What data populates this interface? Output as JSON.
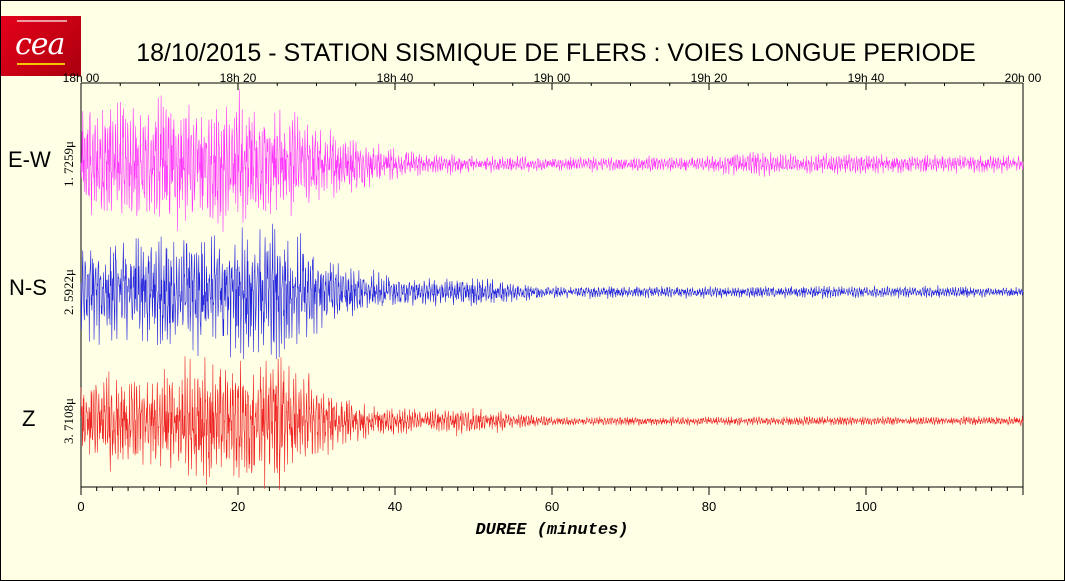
{
  "title": "18/10/2015  -  STATION SISMIQUE DE FLERS : VOIES LONGUE PERIODE",
  "chart_data": {
    "type": "line",
    "title": "18/10/2015  -  STATION SISMIQUE DE FLERS : VOIES LONGUE PERIODE",
    "xlabel": "DUREE (minutes)",
    "xlim": [
      0,
      120
    ],
    "x_ticks": [
      0,
      20,
      40,
      60,
      80,
      100
    ],
    "x_minor_step": 2,
    "top_time_ticks": [
      "18h 00",
      "18h 20",
      "18h 40",
      "19h 00",
      "19h 20",
      "19h 40",
      "20h 00"
    ],
    "grid": false,
    "legend": "none",
    "series": [
      {
        "name": "E-W",
        "scale_label": "1. 7259μ",
        "color": "#ff33ff",
        "envelope": {
          "minutes": [
            0,
            5,
            10,
            15,
            20,
            25,
            30,
            33,
            38,
            42,
            50,
            60,
            70,
            80,
            85,
            90,
            100,
            110,
            120
          ],
          "amplitude": [
            0.4,
            0.42,
            0.42,
            0.4,
            0.44,
            0.36,
            0.26,
            0.2,
            0.14,
            0.08,
            0.06,
            0.05,
            0.05,
            0.05,
            0.09,
            0.07,
            0.06,
            0.06,
            0.06
          ]
        }
      },
      {
        "name": "N-S",
        "scale_label": "2. 5922μ",
        "color": "#2222dd",
        "envelope": {
          "minutes": [
            0,
            5,
            10,
            15,
            20,
            25,
            30,
            33,
            38,
            42,
            50,
            60,
            70,
            80,
            90,
            100,
            110,
            120
          ],
          "amplitude": [
            0.32,
            0.34,
            0.36,
            0.42,
            0.42,
            0.44,
            0.3,
            0.18,
            0.12,
            0.09,
            0.09,
            0.04,
            0.04,
            0.04,
            0.04,
            0.04,
            0.04,
            0.03
          ]
        }
      },
      {
        "name": "Z",
        "scale_label": "3. 7108μ",
        "color": "#ee2222",
        "envelope": {
          "minutes": [
            0,
            5,
            10,
            15,
            20,
            25,
            30,
            33,
            38,
            42,
            50,
            60,
            70,
            80,
            90,
            100,
            110,
            120
          ],
          "amplitude": [
            0.3,
            0.32,
            0.34,
            0.4,
            0.38,
            0.44,
            0.28,
            0.18,
            0.1,
            0.08,
            0.09,
            0.03,
            0.03,
            0.03,
            0.03,
            0.03,
            0.03,
            0.03
          ]
        }
      }
    ]
  }
}
